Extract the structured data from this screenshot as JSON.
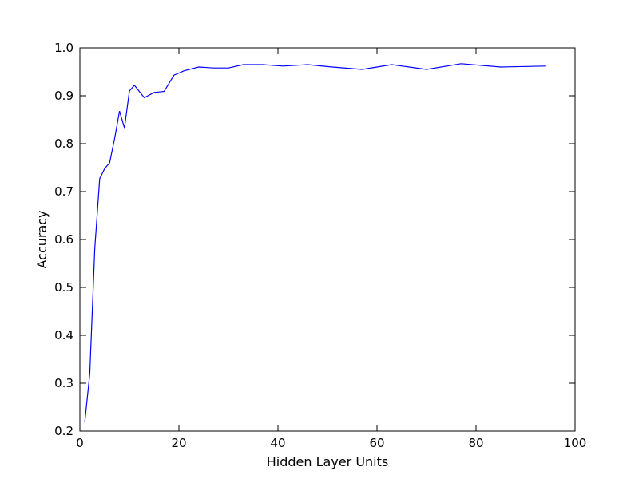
{
  "chart_data": {
    "type": "line",
    "title": "",
    "xlabel": "Hidden Layer Units",
    "ylabel": "Accuracy",
    "xlim": [
      0,
      100
    ],
    "ylim": [
      0.2,
      1.0
    ],
    "xticks": [
      "0",
      "20",
      "40",
      "60",
      "80",
      "100"
    ],
    "yticks": [
      "0.2",
      "0.3",
      "0.4",
      "0.5",
      "0.6",
      "0.7",
      "0.8",
      "0.9",
      "1.0"
    ],
    "grid": false,
    "legend": "none",
    "series": [
      {
        "color": "#0000ff",
        "x": [
          1,
          2,
          3,
          4,
          5,
          6,
          7,
          8,
          9,
          10,
          11,
          13,
          15,
          17,
          19,
          21,
          24,
          27,
          30,
          33,
          37,
          41,
          46,
          51,
          57,
          63,
          70,
          77,
          85,
          94
        ],
        "y": [
          0.22,
          0.32,
          0.58,
          0.727,
          0.748,
          0.76,
          0.81,
          0.868,
          0.833,
          0.91,
          0.922,
          0.896,
          0.907,
          0.909,
          0.943,
          0.952,
          0.96,
          0.958,
          0.958,
          0.965,
          0.965,
          0.962,
          0.965,
          0.96,
          0.955,
          0.965,
          0.955,
          0.967,
          0.96,
          0.962
        ]
      }
    ]
  }
}
